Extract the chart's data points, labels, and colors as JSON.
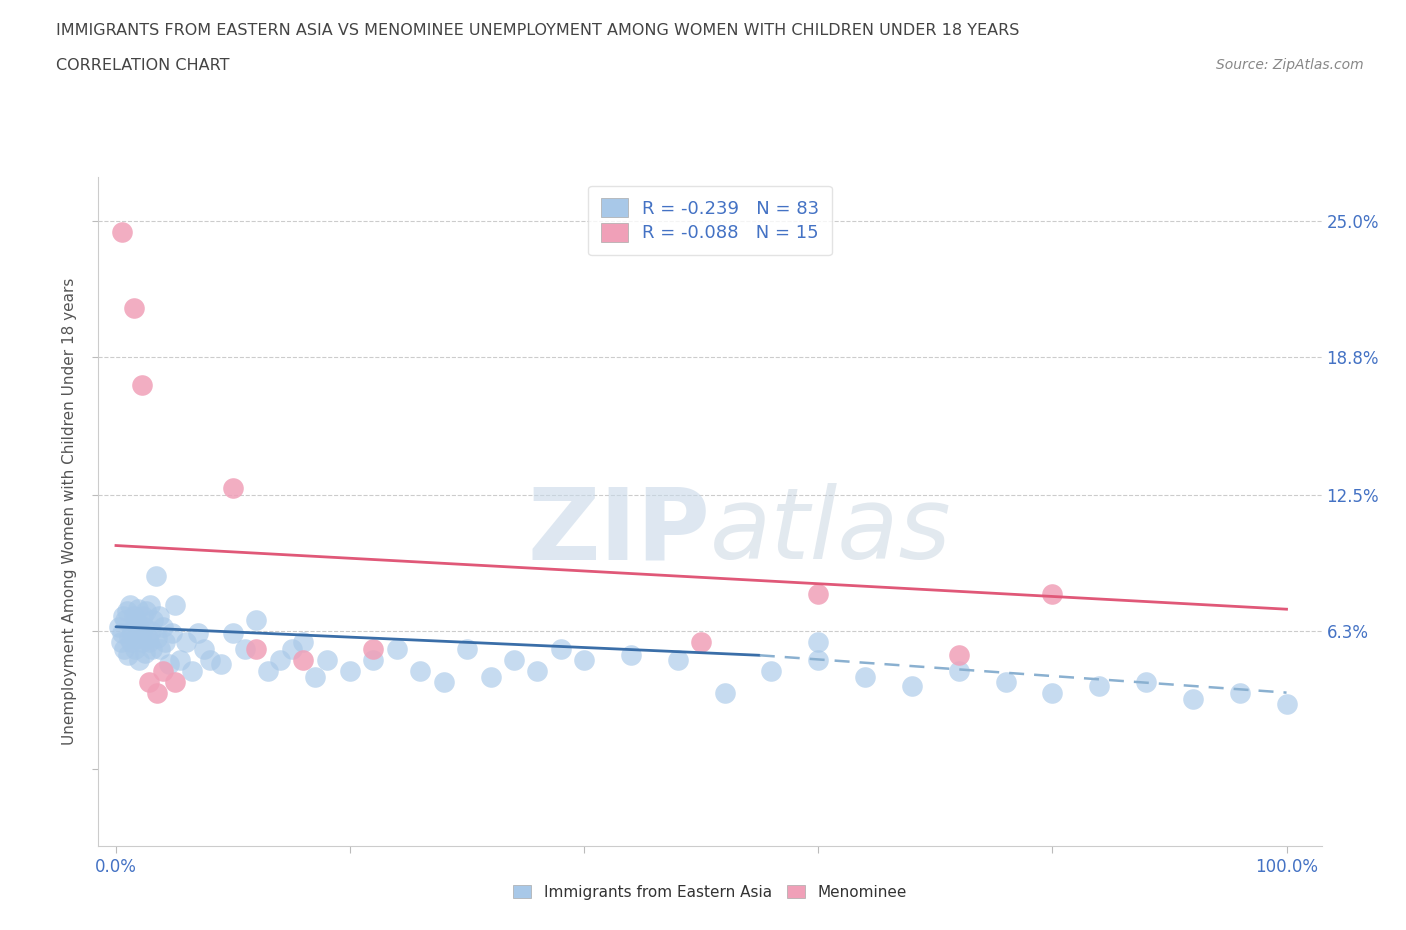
{
  "title": "IMMIGRANTS FROM EASTERN ASIA VS MENOMINEE UNEMPLOYMENT AMONG WOMEN WITH CHILDREN UNDER 18 YEARS",
  "subtitle": "CORRELATION CHART",
  "source": "Source: ZipAtlas.com",
  "ylabel": "Unemployment Among Women with Children Under 18 years",
  "xlim": [
    -1.5,
    103
  ],
  "ylim": [
    -3.5,
    27
  ],
  "ytick_vals": [
    0.0,
    6.3,
    12.5,
    18.8,
    25.0
  ],
  "ytick_right_labels": [
    "",
    "6.3%",
    "12.5%",
    "18.8%",
    "25.0%"
  ],
  "xtick_vals": [
    0.0,
    100.0
  ],
  "xtick_labels": [
    "0.0%",
    "100.0%"
  ],
  "blue_fill": "#a8c8e8",
  "blue_line": "#3a6ea8",
  "blue_dashed": "#8ab0d0",
  "pink_fill": "#f0a0b8",
  "pink_line": "#e05878",
  "r_blue": -0.239,
  "n_blue": 83,
  "r_pink": -0.088,
  "n_pink": 15,
  "legend_label_blue": "Immigrants from Eastern Asia",
  "legend_label_pink": "Menominee",
  "bg_color": "#ffffff",
  "grid_color": "#cccccc",
  "title_color": "#444444",
  "tick_label_color": "#4472c4",
  "blue_x": [
    0.3,
    0.4,
    0.5,
    0.6,
    0.7,
    0.8,
    0.9,
    1.0,
    1.1,
    1.2,
    1.3,
    1.4,
    1.5,
    1.6,
    1.7,
    1.8,
    1.9,
    2.0,
    2.0,
    2.1,
    2.2,
    2.3,
    2.4,
    2.5,
    2.6,
    2.7,
    2.8,
    2.9,
    3.0,
    3.1,
    3.2,
    3.4,
    3.5,
    3.7,
    3.8,
    4.0,
    4.2,
    4.5,
    4.8,
    5.0,
    5.5,
    6.0,
    6.5,
    7.0,
    7.5,
    8.0,
    9.0,
    10.0,
    11.0,
    12.0,
    13.0,
    14.0,
    15.0,
    16.0,
    17.0,
    18.0,
    20.0,
    22.0,
    24.0,
    26.0,
    28.0,
    30.0,
    32.0,
    34.0,
    36.0,
    38.0,
    40.0,
    44.0,
    48.0,
    52.0,
    56.0,
    60.0,
    64.0,
    68.0,
    72.0,
    76.0,
    80.0,
    84.0,
    88.0,
    92.0,
    96.0,
    100.0,
    60.0
  ],
  "blue_y": [
    6.5,
    5.8,
    6.2,
    7.0,
    5.5,
    6.8,
    7.2,
    5.2,
    6.0,
    7.5,
    5.8,
    6.3,
    7.0,
    5.5,
    6.8,
    6.0,
    7.3,
    5.0,
    6.5,
    6.2,
    5.8,
    7.0,
    6.5,
    5.3,
    7.2,
    6.0,
    5.8,
    7.5,
    6.3,
    5.5,
    6.8,
    8.8,
    6.0,
    7.0,
    5.5,
    6.5,
    5.8,
    4.8,
    6.2,
    7.5,
    5.0,
    5.8,
    4.5,
    6.2,
    5.5,
    5.0,
    4.8,
    6.2,
    5.5,
    6.8,
    4.5,
    5.0,
    5.5,
    5.8,
    4.2,
    5.0,
    4.5,
    5.0,
    5.5,
    4.5,
    4.0,
    5.5,
    4.2,
    5.0,
    4.5,
    5.5,
    5.0,
    5.2,
    5.0,
    3.5,
    4.5,
    5.0,
    4.2,
    3.8,
    4.5,
    4.0,
    3.5,
    3.8,
    4.0,
    3.2,
    3.5,
    3.0,
    5.8
  ],
  "pink_x": [
    0.5,
    1.5,
    2.2,
    4.0,
    5.0,
    10.0,
    12.0,
    60.0,
    72.0,
    80.0,
    2.8,
    3.5,
    16.0,
    22.0,
    50.0
  ],
  "pink_y": [
    24.5,
    21.0,
    17.5,
    4.5,
    4.0,
    12.8,
    5.5,
    8.0,
    5.2,
    8.0,
    4.0,
    3.5,
    5.0,
    5.5,
    5.8
  ],
  "pink_line_x0": 0,
  "pink_line_x1": 100,
  "pink_line_y0": 10.2,
  "pink_line_y1": 7.3,
  "blue_solid_x0": 0,
  "blue_solid_x1": 55,
  "blue_solid_y0": 6.5,
  "blue_solid_y1": 5.2,
  "blue_dash_x0": 55,
  "blue_dash_x1": 100,
  "blue_dash_y0": 5.2,
  "blue_dash_y1": 3.5
}
